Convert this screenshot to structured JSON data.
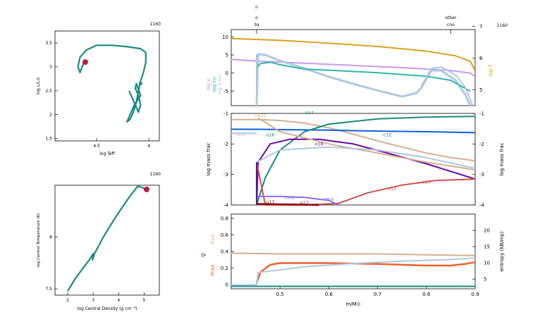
{
  "colors": {
    "teal": "#1a8a7e",
    "red_dot": "#b22040",
    "gold": "#d9a020",
    "lavender": "#c89af0",
    "lightblue": "#b0c8e0",
    "tealbright": "#2fb8a6",
    "purple": "#6a0aa0",
    "blue": "#1060e0",
    "tan": "#d4b090",
    "darkred": "#8b1010",
    "salmon": "#d05050",
    "violet": "#8870e8",
    "orange": "#f06030"
  },
  "chart_data": [
    {
      "id": "hr",
      "type": "line",
      "model_number": "1160",
      "xlabel": "log Teff",
      "ylabel": "log L/L⊙",
      "x_ticks": [
        "4.5",
        "4"
      ],
      "y_ticks": [
        "1.5",
        "2",
        "2.5",
        "3",
        "3.5"
      ],
      "xlim": [
        4.9,
        3.9
      ],
      "ylim": [
        1.45,
        3.75
      ],
      "series": [
        {
          "x": [
            4.62,
            4.64,
            4.66,
            4.68,
            4.66,
            4.6,
            4.5,
            4.35,
            4.2,
            4.08,
            4.03,
            4.03,
            4.05,
            4.08,
            4.1,
            4.12,
            4.15,
            4.18,
            4.21,
            4.18,
            4.14,
            4.08,
            4.12,
            4.13,
            4.1,
            4.08,
            4.1,
            4.15,
            4.19
          ],
          "y": [
            3.1,
            3.0,
            2.88,
            3.0,
            3.2,
            3.35,
            3.45,
            3.45,
            3.42,
            3.38,
            3.3,
            3.1,
            2.9,
            2.7,
            2.5,
            2.25,
            2.05,
            1.9,
            1.85,
            2.0,
            2.2,
            2.4,
            2.65,
            2.55,
            2.4,
            2.2,
            2.05,
            2.3,
            2.5
          ]
        }
      ],
      "current": {
        "x": 4.61,
        "y": 3.1
      }
    },
    {
      "id": "center",
      "type": "line",
      "model_number": "1160",
      "xlabel": "log Central Density (g cm⁻³)",
      "ylabel": "log Central Temperature (K)",
      "x_ticks": [
        "2",
        "3",
        "4",
        "5"
      ],
      "y_ticks": [
        "7.5",
        "8"
      ],
      "xlim": [
        1.5,
        5.6
      ],
      "ylim": [
        7.44,
        8.5
      ],
      "series": [
        {
          "x": [
            2.0,
            2.3,
            2.6,
            2.85,
            2.95,
            3.0,
            2.97,
            3.05,
            3.4,
            3.9,
            4.4,
            4.75,
            4.9,
            5.0
          ],
          "y": [
            7.48,
            7.6,
            7.7,
            7.78,
            7.82,
            7.84,
            7.78,
            7.84,
            8.0,
            8.2,
            8.38,
            8.49,
            8.48,
            8.47
          ]
        }
      ],
      "current": {
        "x": 5.1,
        "y": 8.46
      }
    },
    {
      "id": "profile_top",
      "type": "line",
      "model_number": "1160",
      "top_labels": {
        "o": "o",
        "n": "n",
        "three_alpha": "3α",
        "other": "other",
        "cno": "cno"
      },
      "ylabel_left": [
        "log ρ",
        "log εν",
        "log εnuc"
      ],
      "ylabel_right": "log T",
      "xlim": [
        0.4,
        0.9
      ],
      "ylim_left": [
        -9,
        12
      ],
      "ylim_right": [
        4.5,
        6.9
      ],
      "left_ticks": [
        "-5",
        "0",
        "5",
        "10"
      ],
      "right_ticks": [
        "5",
        "6",
        "7"
      ],
      "series": [
        {
          "name": "log T",
          "axis": "right",
          "x": [
            0.4,
            0.5,
            0.6,
            0.7,
            0.8,
            0.86,
            0.89,
            0.9
          ],
          "y": [
            6.62,
            6.56,
            6.47,
            6.37,
            6.22,
            6.07,
            5.9,
            5.6
          ]
        },
        {
          "name": "log ρ",
          "axis": "left",
          "x": [
            0.4,
            0.45,
            0.55,
            0.65,
            0.75,
            0.85,
            0.89,
            0.9
          ],
          "y": [
            3.8,
            3.3,
            2.7,
            2.1,
            1.5,
            0.7,
            0.0,
            -1.0
          ]
        },
        {
          "name": "log εnuc",
          "axis": "left",
          "x": [
            0.452,
            0.455,
            0.47,
            0.5,
            0.55,
            0.6,
            0.65,
            0.7,
            0.75,
            0.78,
            0.79,
            0.81,
            0.83,
            0.86,
            0.88,
            0.89
          ],
          "y": [
            -9,
            5.2,
            5.0,
            3.4,
            1.3,
            -1.0,
            -3.0,
            -4.8,
            -6.5,
            -5.5,
            -4.0,
            0.7,
            0.7,
            -2.0,
            -6.0,
            -9
          ]
        },
        {
          "name": "log εν",
          "axis": "left",
          "x": [
            0.452,
            0.46,
            0.48,
            0.5,
            0.55,
            0.6,
            0.7,
            0.8,
            0.85,
            0.89
          ],
          "y": [
            1.5,
            2.6,
            3.0,
            2.3,
            1.1,
            0.8,
            0.1,
            -0.9,
            -2.0,
            -5.0
          ]
        },
        {
          "name": "edge",
          "axis": "left",
          "x": [
            0.79,
            0.81,
            0.83,
            0.86,
            0.88,
            0.895
          ],
          "y": [
            -3.5,
            1.2,
            1.7,
            -0.5,
            -4.0,
            -9
          ]
        }
      ]
    },
    {
      "id": "profile_mid",
      "type": "line",
      "ylabel_left": "log mass frac",
      "ylabel_right": "log mass frac",
      "xlim": [
        0.4,
        0.9
      ],
      "ylim": [
        -4,
        -1
      ],
      "left_ticks": [
        "-4",
        "-3",
        "-2",
        "-1"
      ],
      "right_ticks": [
        "-4",
        "-3",
        "-2",
        "-1"
      ],
      "series": [
        {
          "name": "c12",
          "x": [
            0.4,
            0.452,
            0.5,
            0.55,
            0.6,
            0.65,
            0.7,
            0.75,
            0.8,
            0.85,
            0.9
          ],
          "y": [
            -1.2,
            -1.2,
            -1.23,
            -1.32,
            -1.47,
            -1.68,
            -1.9,
            -2.1,
            -2.3,
            -2.45,
            -2.55
          ]
        },
        {
          "name": "o16",
          "x": [
            0.4,
            0.452,
            0.5,
            0.6,
            0.7,
            0.8,
            0.9
          ],
          "y": [
            -1.52,
            -1.52,
            -1.53,
            -1.55,
            -1.58,
            -1.6,
            -1.63
          ]
        },
        {
          "name": "n14",
          "x": [
            0.452,
            0.47,
            0.5,
            0.55,
            0.6,
            0.7,
            0.8,
            0.9
          ],
          "y": [
            -4,
            -3.1,
            -2.2,
            -1.6,
            -1.35,
            -1.18,
            -1.12,
            -1.1
          ]
        },
        {
          "name": "o18",
          "x": [
            0.452,
            0.455,
            0.48,
            0.52,
            0.58,
            0.65,
            0.72,
            0.8,
            0.86,
            0.9
          ],
          "y": [
            -4,
            -2.6,
            -2.0,
            -1.85,
            -1.85,
            -2.0,
            -2.3,
            -2.65,
            -2.95,
            -3.15
          ]
        },
        {
          "name": "ne22",
          "x": [
            0.4,
            0.452
          ],
          "y": [
            -1.65,
            -1.65
          ]
        },
        {
          "name": "ne22b",
          "x": [
            0.455,
            0.5,
            0.6,
            0.7,
            0.8,
            0.9
          ],
          "y": [
            -1.15,
            -1.6,
            -2.0,
            -2.3,
            -2.6,
            -2.85
          ]
        },
        {
          "name": "c13",
          "x": [
            0.452,
            0.47,
            0.55,
            0.62,
            0.68,
            0.75,
            0.82,
            0.9
          ],
          "y": [
            -2.6,
            -4,
            -4,
            -3.95,
            -3.6,
            -3.35,
            -3.2,
            -3.15
          ]
        },
        {
          "name": "neut",
          "x": [
            0.452,
            0.5,
            0.55,
            0.6,
            0.62
          ],
          "y": [
            -3.72,
            -3.72,
            -3.75,
            -3.85,
            -4
          ]
        },
        {
          "name": "o17",
          "x": [
            0.452,
            0.5,
            0.55,
            0.58
          ],
          "y": [
            -3.97,
            -3.98,
            -3.99,
            -4
          ]
        },
        {
          "name": "gray",
          "x": [
            0.452,
            0.5,
            0.6,
            0.7,
            0.8,
            0.9
          ],
          "y": [
            -2.6,
            -2.2,
            -2.1,
            -2.2,
            -2.45,
            -2.8
          ]
        }
      ],
      "labels": [
        "ne22",
        "o16",
        "c12",
        "o18",
        "ne22",
        "n14",
        "neut",
        "o17",
        "c13",
        "c13",
        "o17",
        "neut"
      ]
    },
    {
      "id": "profile_bottom",
      "type": "line",
      "xlabel": "m/M⊙",
      "ylabel_left": "∇",
      "ylabel_ad": "∇ad",
      "ylabel_rad": "∇rad",
      "ylabel_right": "entropy (kB/mp)",
      "xlim": [
        0.4,
        0.9
      ],
      "ylim_left": [
        -0.05,
        0.85
      ],
      "ylim_right": [
        2,
        25
      ],
      "x_ticks": [
        "0.5",
        "0.6",
        "0.7",
        "0.8",
        "0.9"
      ],
      "left_ticks": [
        "0",
        "0.2",
        "0.4",
        "0.6",
        "0.8"
      ],
      "right_ticks": [
        "5",
        "10",
        "15",
        "20"
      ],
      "series": [
        {
          "name": "∇ad",
          "axis": "left",
          "x": [
            0.4,
            0.5,
            0.6,
            0.7,
            0.8,
            0.9
          ],
          "y": [
            0.38,
            0.37,
            0.37,
            0.37,
            0.36,
            0.35
          ]
        },
        {
          "name": "∇rad",
          "axis": "left",
          "x": [
            0.452,
            0.46,
            0.48,
            0.5,
            0.55,
            0.6,
            0.7,
            0.8,
            0.85,
            0.88,
            0.9
          ],
          "y": [
            0.02,
            0.15,
            0.24,
            0.26,
            0.26,
            0.26,
            0.25,
            0.23,
            0.23,
            0.25,
            0.27
          ]
        },
        {
          "name": "entropy",
          "axis": "right",
          "x": [
            0.4,
            0.452,
            0.455,
            0.55,
            0.65,
            0.75,
            0.85,
            0.9
          ],
          "y": [
            3.2,
            3.2,
            7.0,
            8.8,
            9.8,
            10.5,
            11.0,
            11.5
          ]
        },
        {
          "name": "flat",
          "axis": "left",
          "x": [
            0.4,
            0.9
          ],
          "y": [
            -0.02,
            -0.02
          ]
        }
      ]
    }
  ]
}
